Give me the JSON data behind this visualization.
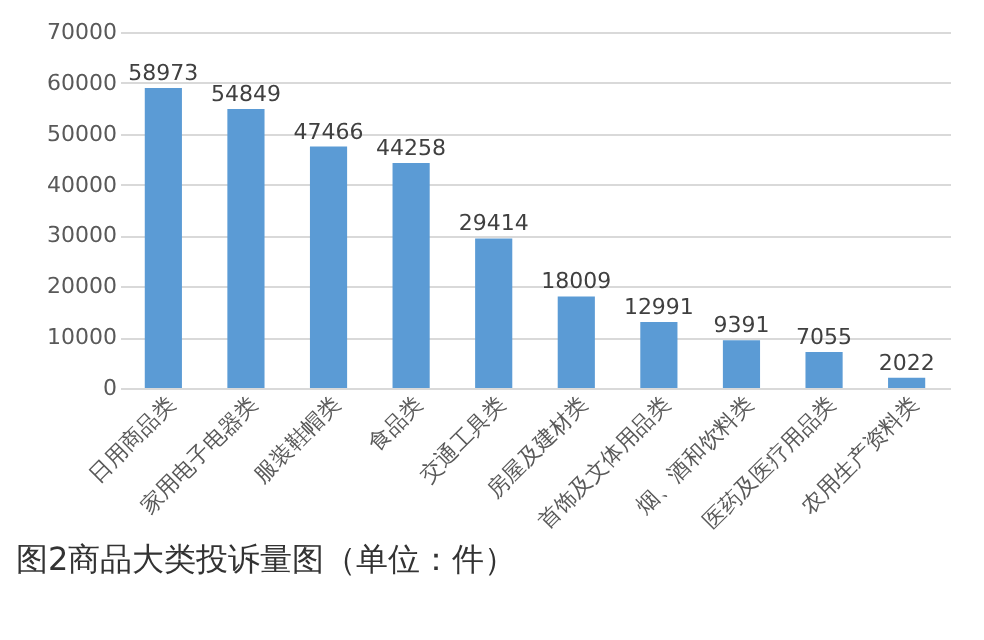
{
  "chart_data": {
    "type": "bar",
    "title": "图2商品大类投诉量图（单位：件）",
    "categories": [
      "日用商品类",
      "家用电子电器类",
      "服装鞋帽类",
      "食品类",
      "交通工具类",
      "房屋及建材类",
      "首饰及文体用品类",
      "烟、酒和饮料类",
      "医药及医疗用品类",
      "农用生产资料类"
    ],
    "values": [
      58973,
      54849,
      47466,
      44258,
      29414,
      18009,
      12991,
      9391,
      7055,
      2022
    ],
    "color": "#5b9bd5",
    "ylim": [
      0,
      70000
    ],
    "yticks": [
      0,
      10000,
      20000,
      30000,
      40000,
      50000,
      60000,
      70000
    ],
    "grid": "y",
    "data_labels": true
  }
}
